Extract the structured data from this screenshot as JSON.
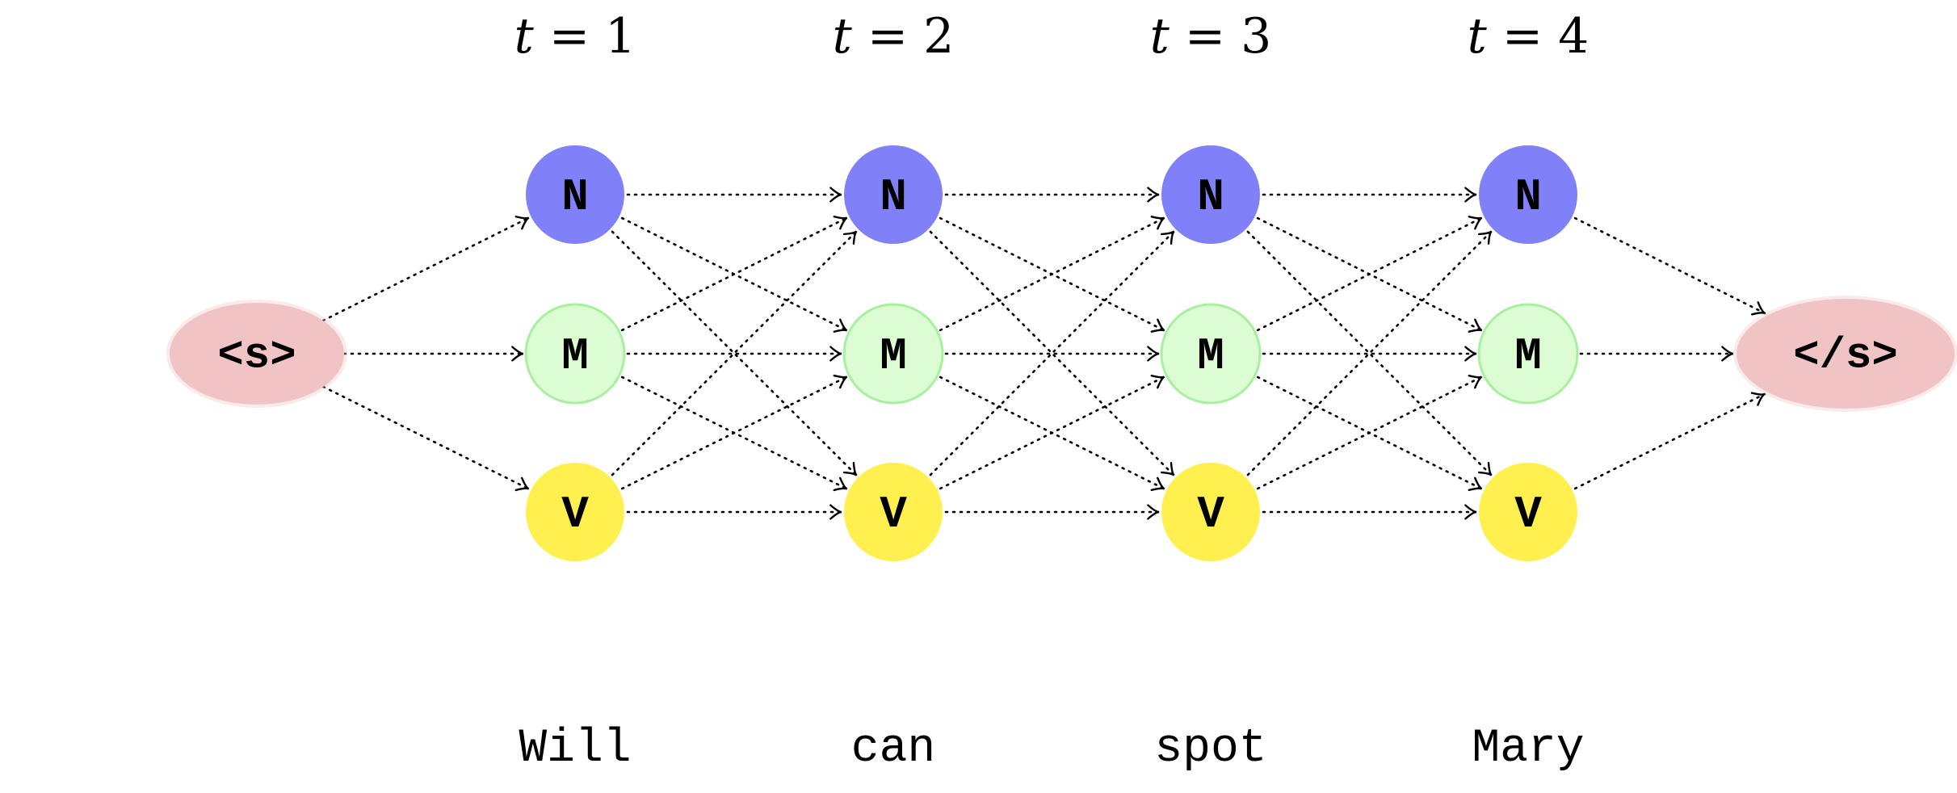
{
  "time_steps": [
    {
      "prefix": "t",
      "equals": "= ",
      "value": "1"
    },
    {
      "prefix": "t",
      "equals": "= ",
      "value": "2"
    },
    {
      "prefix": "t",
      "equals": "= ",
      "value": "3"
    },
    {
      "prefix": "t",
      "equals": "= ",
      "value": "4"
    }
  ],
  "words": [
    "Will",
    "can",
    "spot",
    "Mary"
  ],
  "states": [
    "N",
    "M",
    "V"
  ],
  "start_token": "<s>",
  "end_token": "</s>",
  "colors": {
    "N": "#8080f8",
    "M": "#dcfcd4",
    "M_stroke": "#a8f0a0",
    "V": "#fff050",
    "boundary": "#f0c4c4"
  }
}
